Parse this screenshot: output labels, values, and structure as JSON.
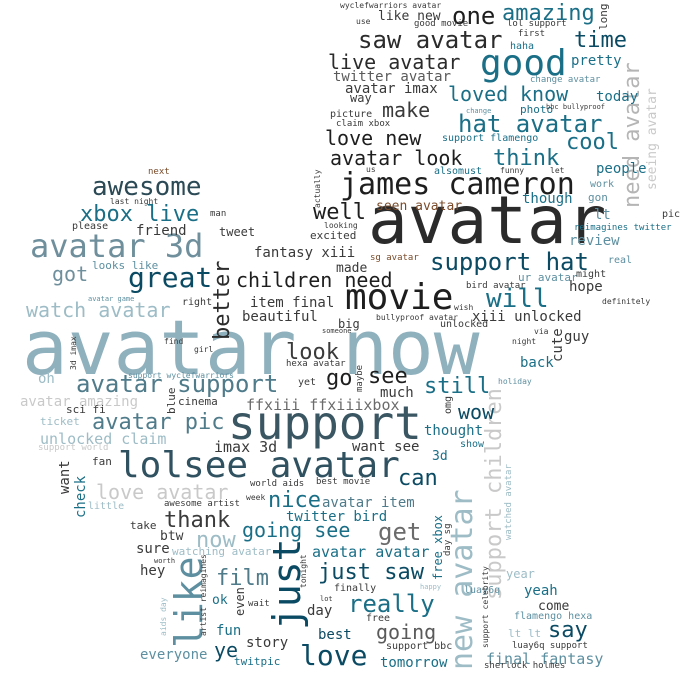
{
  "palette": {
    "dark": "#2b2b2b",
    "teal": "#1a6f87",
    "navy": "#0b4a63",
    "slate": "#6b8b97",
    "light": "#9dbcc6",
    "pale": "#c9c9c9",
    "brown": "#7a4b2a"
  },
  "words": [
    {
      "text": "avatar now",
      "color": "#8fb0bd"
    },
    {
      "text": "avatar",
      "color": "#2b2b2b"
    },
    {
      "text": "support",
      "color": "#3a5663"
    },
    {
      "text": "movie",
      "color": "#1e1e1e"
    },
    {
      "text": "james cameron",
      "color": "#1e1e1e"
    },
    {
      "text": "lolsee avatar",
      "color": "#2f5160"
    },
    {
      "text": "avatar 3d",
      "color": "#6f8f9c"
    },
    {
      "text": "good",
      "color": "#1a6f87"
    },
    {
      "text": "support hat",
      "color": "#0b4a63"
    },
    {
      "text": "hat avatar",
      "color": "#1a6f87"
    },
    {
      "text": "saw avatar",
      "color": "#2b2b2b"
    },
    {
      "text": "awesome",
      "color": "#2b4a56"
    },
    {
      "text": "great",
      "color": "#0b4a63"
    },
    {
      "text": "like",
      "color": "#5d8fa0"
    },
    {
      "text": "just",
      "color": "#0b4a63"
    },
    {
      "text": "new avatar",
      "color": "#9dbcc6"
    },
    {
      "text": "support children",
      "color": "#c9c9c9"
    },
    {
      "text": "need avatar",
      "color": "#b5b5b5"
    },
    {
      "text": "children need",
      "color": "#1e1e1e"
    },
    {
      "text": "love",
      "color": "#0b4a63"
    },
    {
      "text": "avatar support",
      "color": "#4f7b8a"
    },
    {
      "text": "watch avatar",
      "color": "#9dbcc6"
    },
    {
      "text": "will",
      "color": "#1a6f87"
    },
    {
      "text": "amazing",
      "color": "#1a6f87"
    },
    {
      "text": "one",
      "color": "#1e1e1e"
    },
    {
      "text": "time",
      "color": "#0b4a63"
    },
    {
      "text": "live avatar",
      "color": "#2b2b2b"
    },
    {
      "text": "twitter avatar",
      "color": "#5a5a5a"
    },
    {
      "text": "avatar imax",
      "color": "#3a3a3a"
    },
    {
      "text": "make",
      "color": "#3a3a3a"
    },
    {
      "text": "loved",
      "color": "#1a6f87"
    },
    {
      "text": "know",
      "color": "#1a6f87"
    },
    {
      "text": "love new",
      "color": "#1e1e1e"
    },
    {
      "text": "avatar look",
      "color": "#1e1e1e"
    },
    {
      "text": "think",
      "color": "#1a6f87"
    },
    {
      "text": "cool",
      "color": "#1a6f87"
    },
    {
      "text": "well",
      "color": "#1e1e1e"
    },
    {
      "text": "seen avatar",
      "color": "#7a4b2a"
    },
    {
      "text": "xbox live",
      "color": "#1a6f87"
    },
    {
      "text": "got",
      "color": "#6f8f9c"
    },
    {
      "text": "better",
      "color": "#2b2b2b"
    },
    {
      "text": "see",
      "color": "#1e1e1e"
    },
    {
      "text": "go",
      "color": "#1e1e1e"
    },
    {
      "text": "look",
      "color": "#3a3a3a"
    },
    {
      "text": "still",
      "color": "#1a6f87"
    },
    {
      "text": "wow",
      "color": "#0b4a63"
    },
    {
      "text": "avatar pic",
      "color": "#4f7b8a"
    },
    {
      "text": "can",
      "color": "#0b4a63"
    },
    {
      "text": "love avatar",
      "color": "#c9c9c9"
    },
    {
      "text": "thank",
      "color": "#3a3a3a"
    },
    {
      "text": "nice",
      "color": "#1a6f87"
    },
    {
      "text": "now",
      "color": "#9dbcc6"
    },
    {
      "text": "going see",
      "color": "#1a6f87"
    },
    {
      "text": "get",
      "color": "#6b6b6b"
    },
    {
      "text": "film",
      "color": "#4f7b8a"
    },
    {
      "text": "just saw",
      "color": "#0b4a63"
    },
    {
      "text": "really",
      "color": "#1a6f87"
    },
    {
      "text": "going",
      "color": "#5a5a5a"
    },
    {
      "text": "say",
      "color": "#0b4a63"
    },
    {
      "text": "ye",
      "color": "#0b4a63"
    },
    {
      "text": "fantasy xiii",
      "color": "#3a3a3a"
    },
    {
      "text": "item final",
      "color": "#3a3a3a"
    },
    {
      "text": "beautiful",
      "color": "#3a3a3a"
    },
    {
      "text": "xiii unlocked",
      "color": "#3a3a3a"
    },
    {
      "text": "ffxiii ffxiiixbox",
      "color": "#6b6b6b"
    },
    {
      "text": "imax 3d",
      "color": "#3a3a3a"
    },
    {
      "text": "unlocked claim",
      "color": "#9dbcc6"
    },
    {
      "text": "avatar amazing",
      "color": "#c9c9c9"
    },
    {
      "text": "friend",
      "color": "#3a3a3a"
    },
    {
      "text": "tweet",
      "color": "#3a3a3a"
    },
    {
      "text": "review",
      "color": "#5d8fa0"
    },
    {
      "text": "people",
      "color": "#1a6f87"
    },
    {
      "text": "pretty",
      "color": "#1a6f87"
    },
    {
      "text": "today",
      "color": "#1a6f87"
    },
    {
      "text": "though",
      "color": "#1a6f87"
    },
    {
      "text": "hope",
      "color": "#3a3a3a"
    },
    {
      "text": "thought",
      "color": "#1a6f87"
    },
    {
      "text": "want see",
      "color": "#3a3a3a"
    },
    {
      "text": "twitter bird",
      "color": "#1a6f87"
    },
    {
      "text": "avatar item",
      "color": "#4f7b8a"
    },
    {
      "text": "avatar avatar",
      "color": "#1a6f87"
    },
    {
      "text": "final fantasy",
      "color": "#5d8fa0"
    },
    {
      "text": "tomorrow",
      "color": "#1a6f87"
    },
    {
      "text": "everyone",
      "color": "#5d8fa0"
    },
    {
      "text": "story",
      "color": "#3a3a3a"
    },
    {
      "text": "best",
      "color": "#0b4a63"
    },
    {
      "text": "day",
      "color": "#3a3a3a"
    },
    {
      "text": "fun",
      "color": "#1a6f87"
    },
    {
      "text": "hey",
      "color": "#3a3a3a"
    },
    {
      "text": "sure",
      "color": "#3a3a3a"
    },
    {
      "text": "btw",
      "color": "#3a3a3a"
    },
    {
      "text": "watching avatar",
      "color": "#9dbcc6"
    },
    {
      "text": "come",
      "color": "#3a3a3a"
    },
    {
      "text": "yeah",
      "color": "#1a6f87"
    },
    {
      "text": "year",
      "color": "#9dbcc6"
    },
    {
      "text": "back",
      "color": "#1a6f87"
    },
    {
      "text": "cute",
      "color": "#3a3a3a"
    },
    {
      "text": "guy",
      "color": "#3a3a3a"
    },
    {
      "text": "made",
      "color": "#3a3a3a"
    },
    {
      "text": "excited",
      "color": "#3a3a3a"
    },
    {
      "text": "big",
      "color": "#3a3a3a"
    },
    {
      "text": "much",
      "color": "#3a3a3a"
    },
    {
      "text": "sg avatar",
      "color": "#7a4b2a"
    },
    {
      "text": "ur avatar",
      "color": "#5d8fa0"
    },
    {
      "text": "bird avatar",
      "color": "#3a3a3a"
    },
    {
      "text": "bullyproof avatar",
      "color": "#3a3a3a"
    },
    {
      "text": "hexa avatar",
      "color": "#3a3a3a"
    },
    {
      "text": "best movie",
      "color": "#3a3a3a"
    },
    {
      "text": "world aids",
      "color": "#3a3a3a"
    },
    {
      "text": "oh",
      "color": "#9dbcc6"
    },
    {
      "text": "sci fi",
      "color": "#3a3a3a"
    },
    {
      "text": "cinema",
      "color": "#3a3a3a"
    },
    {
      "text": "ticket",
      "color": "#9dbcc6"
    },
    {
      "text": "support world",
      "color": "#c9c9c9"
    },
    {
      "text": "fan",
      "color": "#3a3a3a"
    },
    {
      "text": "want",
      "color": "#3a3a3a"
    },
    {
      "text": "check",
      "color": "#1a6f87"
    },
    {
      "text": "little",
      "color": "#9dbcc6"
    },
    {
      "text": "take",
      "color": "#3a3a3a"
    },
    {
      "text": "pic",
      "color": "#3a3a3a"
    },
    {
      "text": "lt",
      "color": "#5d8fa0"
    },
    {
      "text": "work",
      "color": "#5d8fa0"
    },
    {
      "text": "gon",
      "color": "#5d8fa0"
    },
    {
      "text": "real",
      "color": "#5d8fa0"
    },
    {
      "text": "might",
      "color": "#3a3a3a"
    },
    {
      "text": "unlocked",
      "color": "#3a3a3a"
    },
    {
      "text": "right",
      "color": "#3a3a3a"
    },
    {
      "text": "looks like",
      "color": "#5d8fa0"
    },
    {
      "text": "please",
      "color": "#3a3a3a"
    },
    {
      "text": "last night",
      "color": "#3a3a3a"
    },
    {
      "text": "next",
      "color": "#7a4b2a"
    },
    {
      "text": "man",
      "color": "#3a3a3a"
    },
    {
      "text": "like new",
      "color": "#3a3a3a"
    },
    {
      "text": "good movie",
      "color": "#3a3a3a"
    },
    {
      "text": "lol support",
      "color": "#3a3a3a"
    },
    {
      "text": "first",
      "color": "#3a3a3a"
    },
    {
      "text": "haha",
      "color": "#1a6f87"
    },
    {
      "text": "long",
      "color": "#3a3a3a"
    },
    {
      "text": "change avatar",
      "color": "#5d8fa0"
    },
    {
      "text": "way",
      "color": "#3a3a3a"
    },
    {
      "text": "picture",
      "color": "#3a3a3a"
    },
    {
      "text": "claim xbox",
      "color": "#3a3a3a"
    },
    {
      "text": "photo",
      "color": "#1a6f87"
    },
    {
      "text": "support flamengo",
      "color": "#1a6f87"
    },
    {
      "text": "seeing avatar",
      "color": "#c9c9c9"
    },
    {
      "text": "free xbox",
      "color": "#1a6f87"
    },
    {
      "text": "free",
      "color": "#3a3a3a"
    },
    {
      "text": "finally",
      "color": "#3a3a3a"
    },
    {
      "text": "watched avatar",
      "color": "#9dbcc6"
    },
    {
      "text": "twitpic",
      "color": "#1a6f87"
    },
    {
      "text": "even",
      "color": "#3a3a3a"
    },
    {
      "text": "ok",
      "color": "#1a6f87"
    },
    {
      "text": "wait",
      "color": "#3a3a3a"
    },
    {
      "text": "support bbc",
      "color": "#3a3a3a"
    },
    {
      "text": "luay6q",
      "color": "#5d8fa0"
    },
    {
      "text": "flamengo hexa",
      "color": "#5d8fa0"
    },
    {
      "text": "lt lt",
      "color": "#9dbcc6"
    },
    {
      "text": "sherlock holmes",
      "color": "#3a3a3a"
    },
    {
      "text": "luay6q support",
      "color": "#3a3a3a"
    },
    {
      "text": "reimagines twitter",
      "color": "#1a6f87"
    },
    {
      "text": "show",
      "color": "#1a6f87"
    },
    {
      "text": "omg",
      "color": "#3a3a3a"
    },
    {
      "text": "3d",
      "color": "#1a6f87"
    },
    {
      "text": "blue",
      "color": "#3a3a3a"
    },
    {
      "text": "yet",
      "color": "#3a3a3a"
    },
    {
      "text": "maybe",
      "color": "#3a3a3a"
    },
    {
      "text": "holiday",
      "color": "#5d8fa0"
    },
    {
      "text": "night",
      "color": "#3a3a3a"
    },
    {
      "text": "via",
      "color": "#3a3a3a"
    },
    {
      "text": "definitely",
      "color": "#3a3a3a"
    },
    {
      "text": "wish",
      "color": "#3a3a3a"
    },
    {
      "text": "someone",
      "color": "#3a3a3a"
    },
    {
      "text": "girl",
      "color": "#3a3a3a"
    },
    {
      "text": "find",
      "color": "#3a3a3a"
    },
    {
      "text": "3d imax",
      "color": "#3a3a3a"
    },
    {
      "text": "support wyclefwarriors",
      "color": "#5d8fa0"
    },
    {
      "text": "awesome artist",
      "color": "#3a3a3a"
    },
    {
      "text": "avatar game",
      "color": "#5d8fa0"
    },
    {
      "text": "wyclefwarriors avatar",
      "color": "#3a3a3a"
    },
    {
      "text": "use",
      "color": "#3a3a3a"
    },
    {
      "text": "also",
      "color": "#1a6f87"
    },
    {
      "text": "must",
      "color": "#1a6f87"
    },
    {
      "text": "funny",
      "color": "#3a3a3a"
    },
    {
      "text": "let",
      "color": "#3a3a3a"
    },
    {
      "text": "us",
      "color": "#3a3a3a"
    },
    {
      "text": "actually",
      "color": "#3a3a3a"
    },
    {
      "text": "looking",
      "color": "#3a3a3a"
    },
    {
      "text": "bbc bullyproof",
      "color": "#3a3a3a"
    },
    {
      "text": "week",
      "color": "#3a3a3a"
    },
    {
      "text": "worth",
      "color": "#3a3a3a"
    },
    {
      "text": "tonight",
      "color": "#3a3a3a"
    },
    {
      "text": "day sg",
      "color": "#3a3a3a"
    },
    {
      "text": "lot",
      "color": "#3a3a3a"
    },
    {
      "text": "happy",
      "color": "#9dbcc6"
    },
    {
      "text": "support celebrity",
      "color": "#3a3a3a"
    },
    {
      "text": "artist reimagines",
      "color": "#3a3a3a"
    },
    {
      "text": "aids day",
      "color": "#9dbcc6"
    },
    {
      "text": "change",
      "color": "#5d8fa0"
    }
  ]
}
